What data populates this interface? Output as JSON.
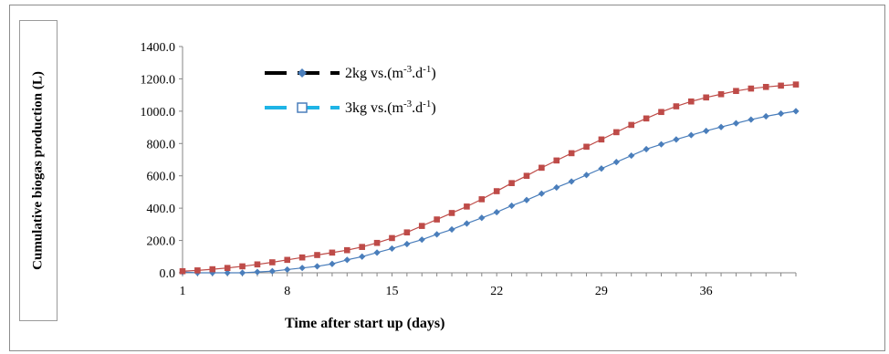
{
  "chart_data": {
    "type": "line",
    "title": "",
    "xlabel": "Time after start up (days)",
    "ylabel": "Cumulative biogas production (L)",
    "xlim": [
      1,
      42
    ],
    "ylim": [
      0,
      1400
    ],
    "xticks": [
      1,
      8,
      15,
      22,
      29,
      36
    ],
    "yticks": [
      "0.0",
      "200.0",
      "400.0",
      "600.0",
      "800.0",
      "1000.0",
      "1200.0",
      "1400.0"
    ],
    "grid": false,
    "legend": "top-left",
    "x": [
      1,
      2,
      3,
      4,
      5,
      6,
      7,
      8,
      9,
      10,
      11,
      12,
      13,
      14,
      15,
      16,
      17,
      18,
      19,
      20,
      21,
      22,
      23,
      24,
      25,
      26,
      27,
      28,
      29,
      30,
      31,
      32,
      33,
      34,
      35,
      36,
      37,
      38,
      39,
      40,
      41,
      42
    ],
    "series": [
      {
        "legend_base": "2kg vs.(m",
        "legend_sup1": "-3",
        "legend_mid": ".d",
        "legend_sup2": "-1",
        "legend_end": ")",
        "color": "#4a7ebb",
        "marker": "diamond",
        "values": [
          5,
          0,
          0,
          0,
          0,
          5,
          10,
          20,
          30,
          40,
          55,
          80,
          100,
          125,
          150,
          178,
          205,
          238,
          268,
          305,
          340,
          375,
          415,
          450,
          490,
          528,
          565,
          605,
          645,
          685,
          725,
          765,
          795,
          825,
          852,
          878,
          902,
          925,
          948,
          968,
          985,
          1000
        ]
      },
      {
        "legend_base": "3kg vs.(m",
        "legend_sup1": "-3",
        "legend_mid": ".d",
        "legend_sup2": "-1",
        "legend_end": ")",
        "color": "#be4b48",
        "marker": "square",
        "values": [
          10,
          15,
          22,
          30,
          40,
          52,
          65,
          80,
          95,
          110,
          125,
          140,
          160,
          185,
          215,
          250,
          290,
          330,
          370,
          410,
          455,
          505,
          555,
          600,
          650,
          695,
          740,
          780,
          825,
          870,
          915,
          955,
          995,
          1030,
          1060,
          1085,
          1105,
          1125,
          1140,
          1150,
          1158,
          1165
        ]
      }
    ]
  },
  "legend_style": {
    "line_color": "#000000",
    "line2_color": "#1fb4e6",
    "marker_color": "#4a7ebb"
  }
}
